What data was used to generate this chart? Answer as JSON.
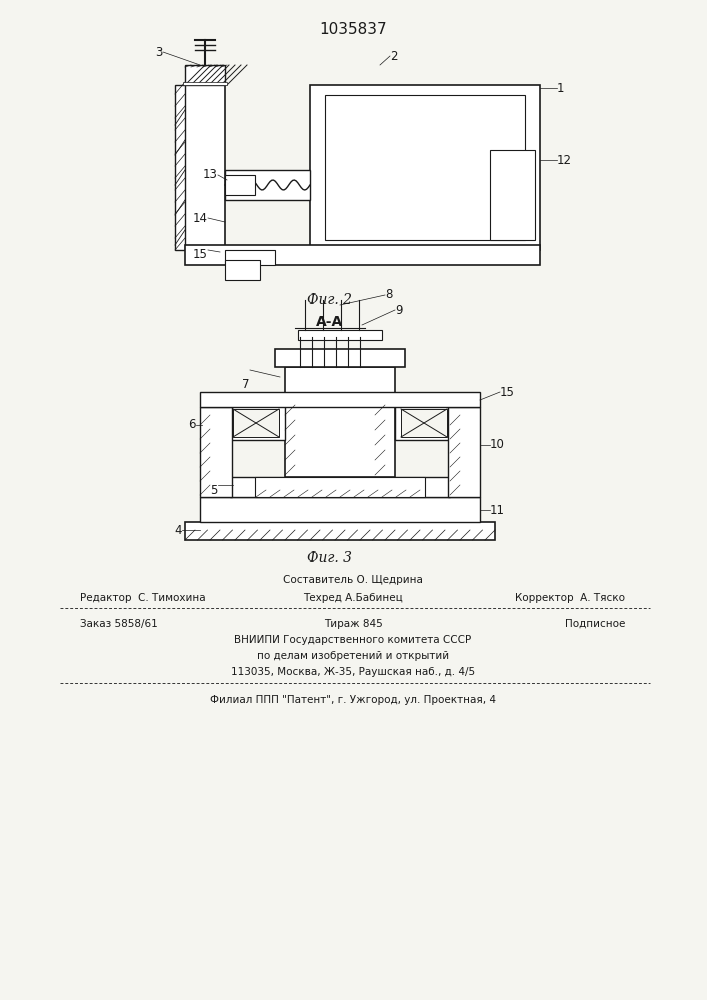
{
  "patent_number": "1035837",
  "fig2_label": "Фиг. 2",
  "fig3_label": "Фиг. 3",
  "section_label": "А-А",
  "footer_line1": "Составитель О. Щедрина",
  "footer_line2_left": "Редактор  С. Тимохина",
  "footer_line2_mid": "Техред А.Бабинец",
  "footer_line2_right": "Корректор  А. Тяско",
  "footer_line3_left": "Заказ 5858/61",
  "footer_line3_mid": "Тираж 845",
  "footer_line3_right": "Подписное",
  "footer_line4": "ВНИИПИ Государственного комитета СССР",
  "footer_line5": "по делам изобретений и открытий",
  "footer_line6": "113035, Москва, Ж-35, Раушская наб., д. 4/5",
  "footer_dashed": "- - - - - - - - - - - - - - - - - - - - - - - - - - - - - - - - - - - - - -",
  "footer_last": "Филиал ППП \"Патент\", г. Ужгород, ул. Проектная, 4",
  "bg_color": "#f5f5f0",
  "line_color": "#1a1a1a",
  "hatch_color": "#1a1a1a"
}
